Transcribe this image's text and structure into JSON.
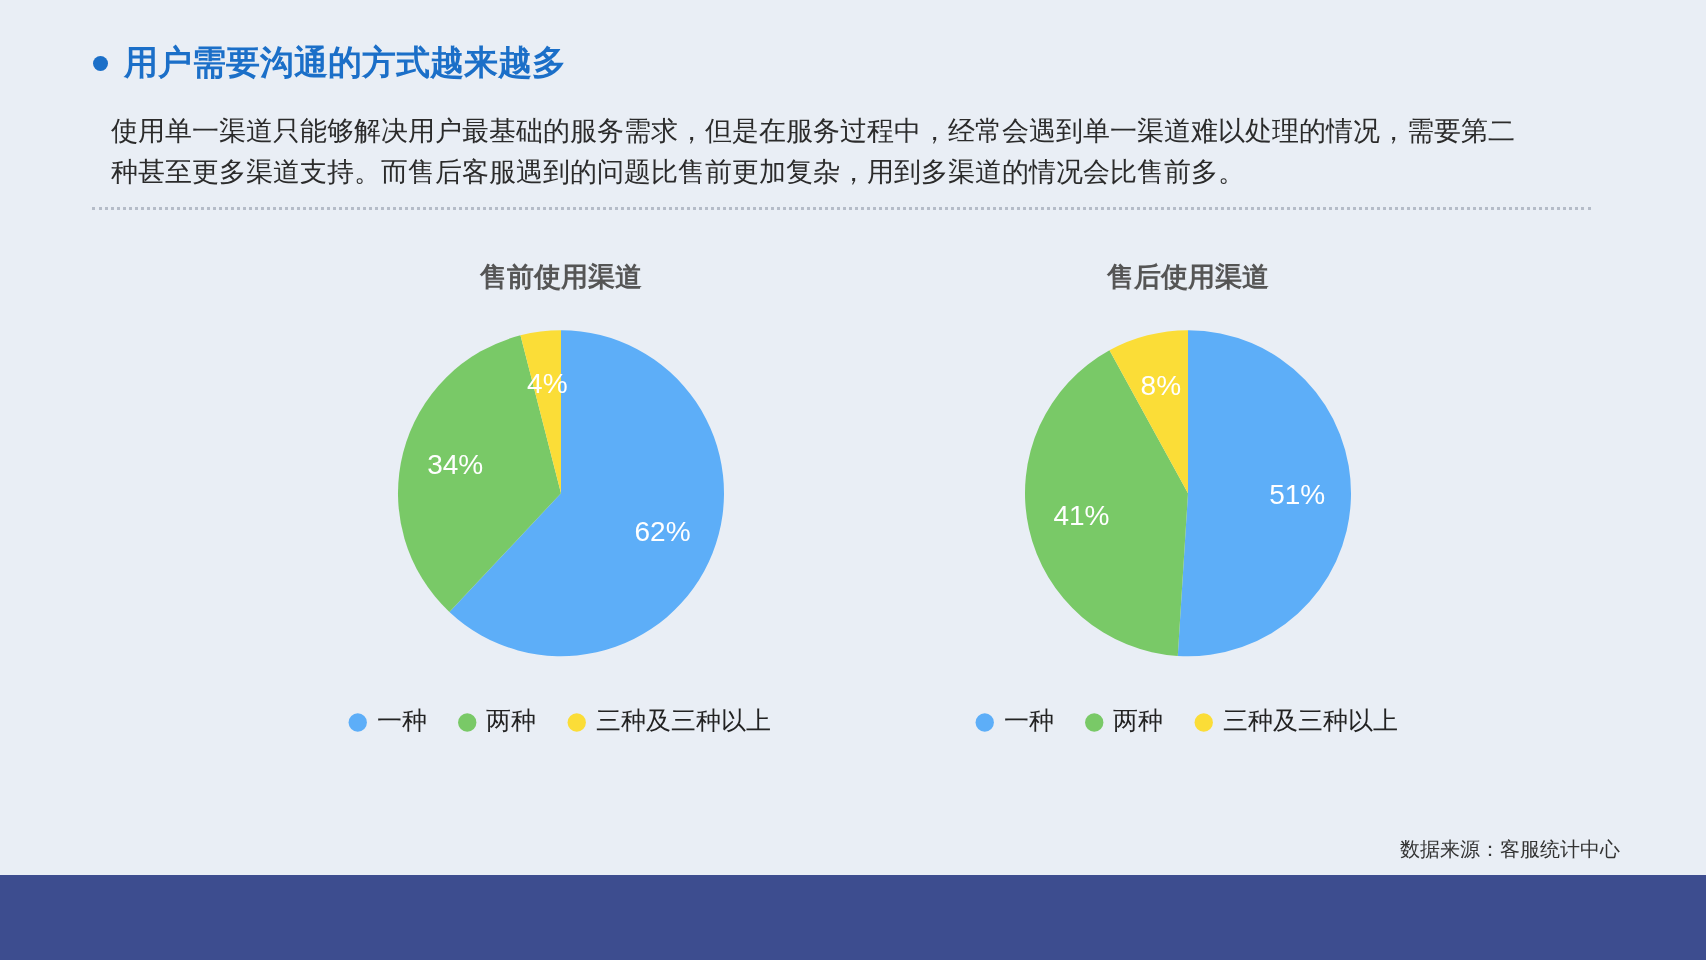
{
  "chart_data": [
    {
      "type": "other",
      "title": "用户需要沟通的方式越来越多",
      "subtitle": "使用单一渠道只能够解决用户最基础的服务需求，但是在服务过程中，经常会遇到单一渠道难以处理的情况，需要第二种甚至更多渠道支持。而售后客服遇到的问题比售前更加复杂，用到多渠道的情况会比售前多。",
      "annotations": [
        "数据来源：客服统计中心"
      ]
    },
    {
      "type": "pie",
      "title": "售前使用渠道",
      "categories": [
        "一种",
        "两种",
        "三种及三种以上"
      ],
      "values": [
        62,
        34,
        4
      ],
      "value_labels": [
        "62%",
        "34%",
        "4%"
      ],
      "colors": [
        "#5daef8",
        "#79c967",
        "#fbdd37"
      ],
      "legend": "bottom"
    },
    {
      "type": "pie",
      "title": "售后使用渠道",
      "categories": [
        "一种",
        "两种",
        "三种及三种以上"
      ],
      "values": [
        51,
        41,
        8
      ],
      "value_labels": [
        "51%",
        "41%",
        "8%"
      ],
      "colors": [
        "#5daef8",
        "#79c967",
        "#fbdd37"
      ],
      "legend": "bottom"
    }
  ]
}
